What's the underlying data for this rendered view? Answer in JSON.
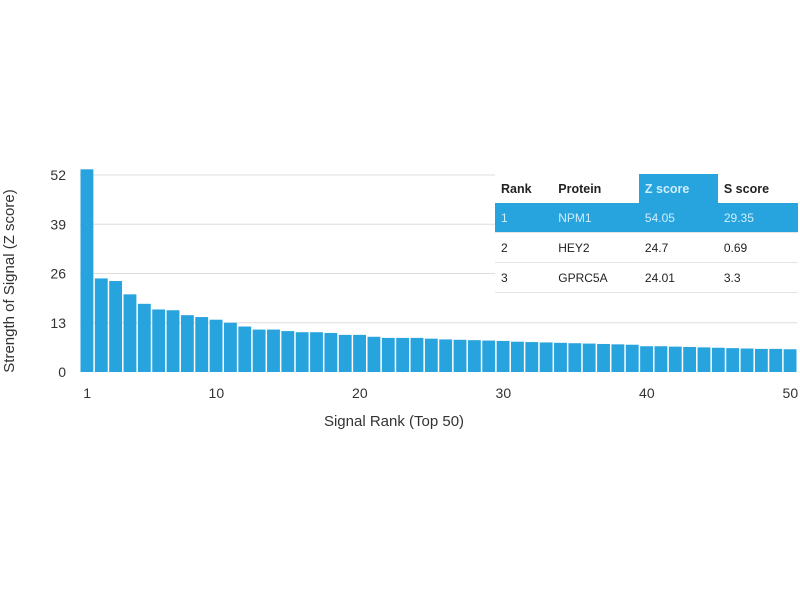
{
  "chart_data": {
    "type": "bar",
    "xlabel": "Signal Rank (Top 50)",
    "ylabel": "Strength of Signal (Z score)",
    "yticks": [
      0,
      13,
      26,
      39,
      52
    ],
    "xticks": [
      1,
      10,
      20,
      30,
      40,
      50
    ],
    "ylim": [
      0,
      52
    ],
    "grid": true,
    "bar_color": "#27a3dd",
    "x": [
      1,
      2,
      3,
      4,
      5,
      6,
      7,
      8,
      9,
      10,
      11,
      12,
      13,
      14,
      15,
      16,
      17,
      18,
      19,
      20,
      21,
      22,
      23,
      24,
      25,
      26,
      27,
      28,
      29,
      30,
      31,
      32,
      33,
      34,
      35,
      36,
      37,
      38,
      39,
      40,
      41,
      42,
      43,
      44,
      45,
      46,
      47,
      48,
      49,
      50
    ],
    "values": [
      54.05,
      24.7,
      24.01,
      20.5,
      18,
      16.5,
      16.3,
      15,
      14.5,
      13.8,
      13,
      12,
      11.2,
      11.2,
      10.8,
      10.5,
      10.5,
      10.3,
      9.8,
      9.8,
      9.3,
      9,
      9,
      9,
      8.8,
      8.6,
      8.5,
      8.4,
      8.3,
      8.2,
      8,
      7.9,
      7.8,
      7.7,
      7.6,
      7.5,
      7.4,
      7.3,
      7.2,
      6.8,
      6.8,
      6.7,
      6.6,
      6.5,
      6.4,
      6.3,
      6.2,
      6.1,
      6.1,
      6.0
    ]
  },
  "table": {
    "headers": [
      "Rank",
      "Protein",
      "Z score",
      "S score"
    ],
    "rows": [
      [
        "1",
        "NPM1",
        "54.05",
        "29.35"
      ],
      [
        "2",
        "HEY2",
        "24.7",
        "0.69"
      ],
      [
        "3",
        "GPRC5A",
        "24.01",
        "3.3"
      ]
    ]
  }
}
